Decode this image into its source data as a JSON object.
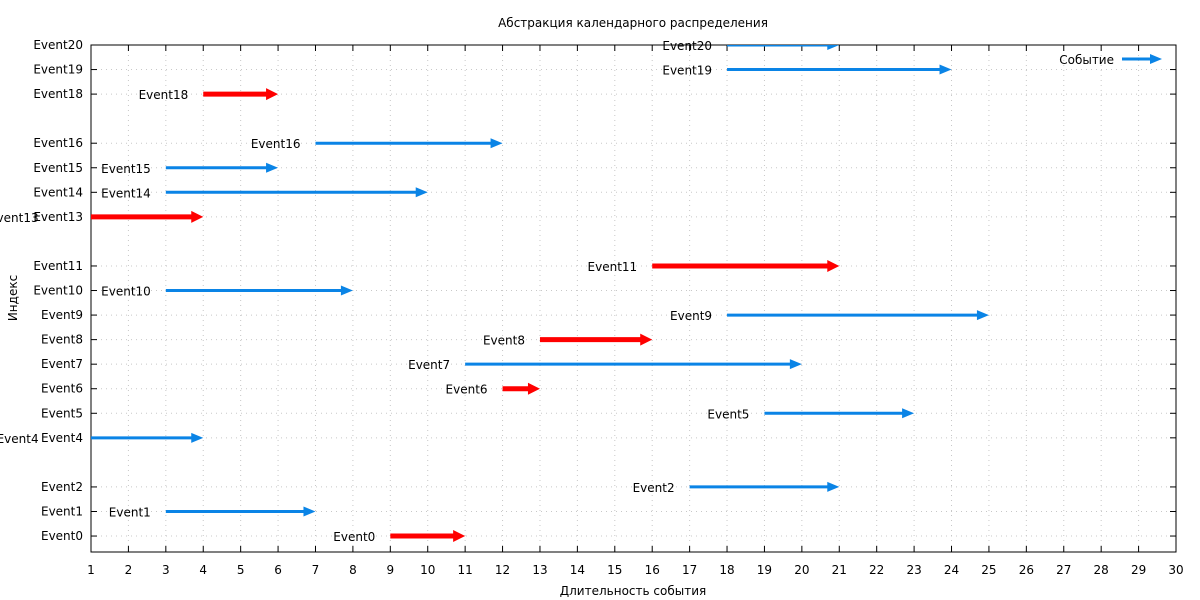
{
  "chart_data": {
    "type": "vector",
    "title": "Абстракция календарного распределения",
    "xlabel": "Длительность события",
    "ylabel": "Индекс",
    "xlim": [
      1,
      30
    ],
    "ylim": [
      -0.65,
      20
    ],
    "grid": true,
    "legend": {
      "placement": "top-right",
      "label": "Событие"
    },
    "x_ticks": [
      1,
      2,
      3,
      4,
      5,
      6,
      7,
      8,
      9,
      10,
      11,
      12,
      13,
      14,
      15,
      16,
      17,
      18,
      19,
      20,
      21,
      22,
      23,
      24,
      25,
      26,
      27,
      28,
      29,
      30
    ],
    "y_ticks": [
      {
        "value": 0,
        "label": "Event0"
      },
      {
        "value": 1,
        "label": "Event1"
      },
      {
        "value": 2,
        "label": "Event2"
      },
      {
        "value": 4,
        "label": "Event4"
      },
      {
        "value": 5,
        "label": "Event5"
      },
      {
        "value": 6,
        "label": "Event6"
      },
      {
        "value": 7,
        "label": "Event7"
      },
      {
        "value": 8,
        "label": "Event8"
      },
      {
        "value": 9,
        "label": "Event9"
      },
      {
        "value": 10,
        "label": "Event10"
      },
      {
        "value": 11,
        "label": "Event11"
      },
      {
        "value": 13,
        "label": "Event13"
      },
      {
        "value": 14,
        "label": "Event14"
      },
      {
        "value": 15,
        "label": "Event15"
      },
      {
        "value": 16,
        "label": "Event16"
      },
      {
        "value": 18,
        "label": "Event18"
      },
      {
        "value": 19,
        "label": "Event19"
      },
      {
        "value": 20,
        "label": "Event20"
      }
    ],
    "colors": {
      "normal": "#0a84e6",
      "critical": "#ff0000"
    },
    "events": [
      {
        "label": "Event0",
        "index": 0,
        "start": 9,
        "end": 11,
        "critical": true
      },
      {
        "label": "Event1",
        "index": 1,
        "start": 3,
        "end": 7,
        "critical": false
      },
      {
        "label": "Event2",
        "index": 2,
        "start": 17,
        "end": 21,
        "critical": false
      },
      {
        "label": "Event4",
        "index": 4,
        "start": 0,
        "end": 4,
        "critical": false
      },
      {
        "label": "Event5",
        "index": 5,
        "start": 19,
        "end": 23,
        "critical": false
      },
      {
        "label": "Event6",
        "index": 6,
        "start": 12,
        "end": 13,
        "critical": true
      },
      {
        "label": "Event7",
        "index": 7,
        "start": 11,
        "end": 20,
        "critical": false
      },
      {
        "label": "Event8",
        "index": 8,
        "start": 13,
        "end": 16,
        "critical": true
      },
      {
        "label": "Event9",
        "index": 9,
        "start": 18,
        "end": 25,
        "critical": false
      },
      {
        "label": "Event10",
        "index": 10,
        "start": 3,
        "end": 8,
        "critical": false
      },
      {
        "label": "Event11",
        "index": 11,
        "start": 16,
        "end": 21,
        "critical": true
      },
      {
        "label": "Event13",
        "index": 13,
        "start": 0,
        "end": 4,
        "critical": true
      },
      {
        "label": "Event14",
        "index": 14,
        "start": 3,
        "end": 10,
        "critical": false
      },
      {
        "label": "Event15",
        "index": 15,
        "start": 3,
        "end": 6,
        "critical": false
      },
      {
        "label": "Event16",
        "index": 16,
        "start": 7,
        "end": 12,
        "critical": false
      },
      {
        "label": "Event18",
        "index": 18,
        "start": 4,
        "end": 6,
        "critical": true
      },
      {
        "label": "Event19",
        "index": 19,
        "start": 18,
        "end": 24,
        "critical": false
      },
      {
        "label": "Event20",
        "index": 20,
        "start": 18,
        "end": 21,
        "critical": false
      }
    ]
  }
}
